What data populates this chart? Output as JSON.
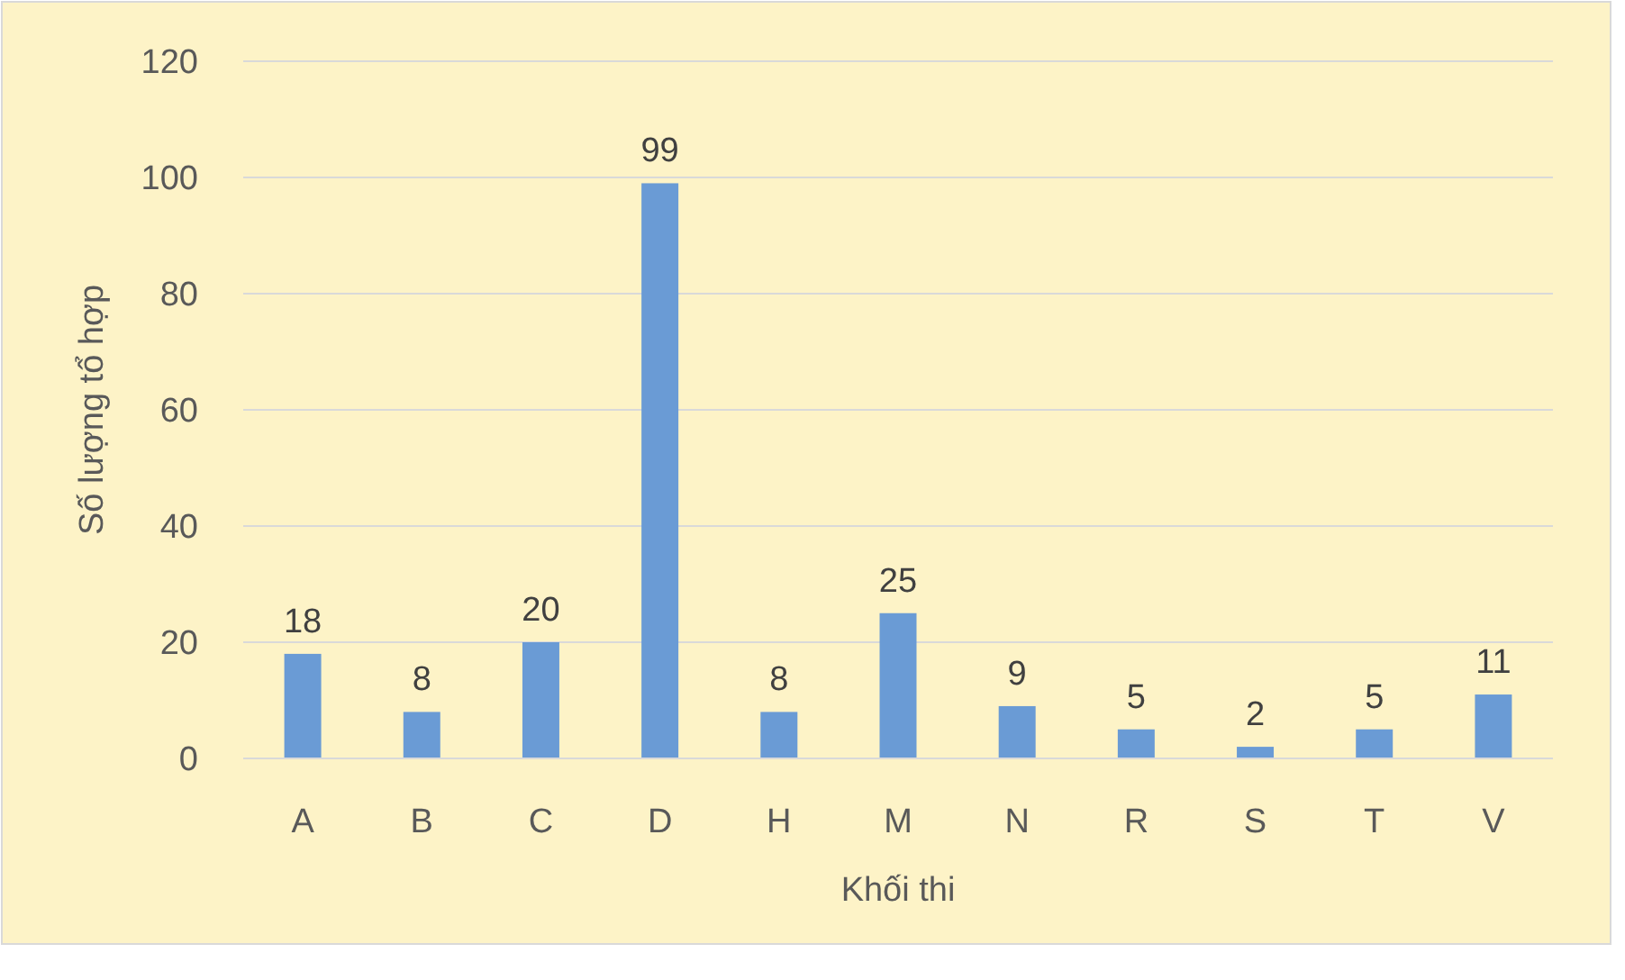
{
  "chart_data": {
    "type": "bar",
    "xlabel": "Khối thi",
    "ylabel": "Số lượng tổ hợp",
    "categories": [
      "A",
      "B",
      "C",
      "D",
      "H",
      "M",
      "N",
      "R",
      "S",
      "T",
      "V"
    ],
    "values": [
      18,
      8,
      20,
      99,
      8,
      25,
      9,
      5,
      2,
      5,
      11
    ],
    "color": "#6a9bd5",
    "ylim": [
      0,
      120
    ],
    "yticks": [
      0,
      20,
      40,
      60,
      80,
      100,
      120
    ],
    "grid": "y",
    "data_labels": true
  }
}
